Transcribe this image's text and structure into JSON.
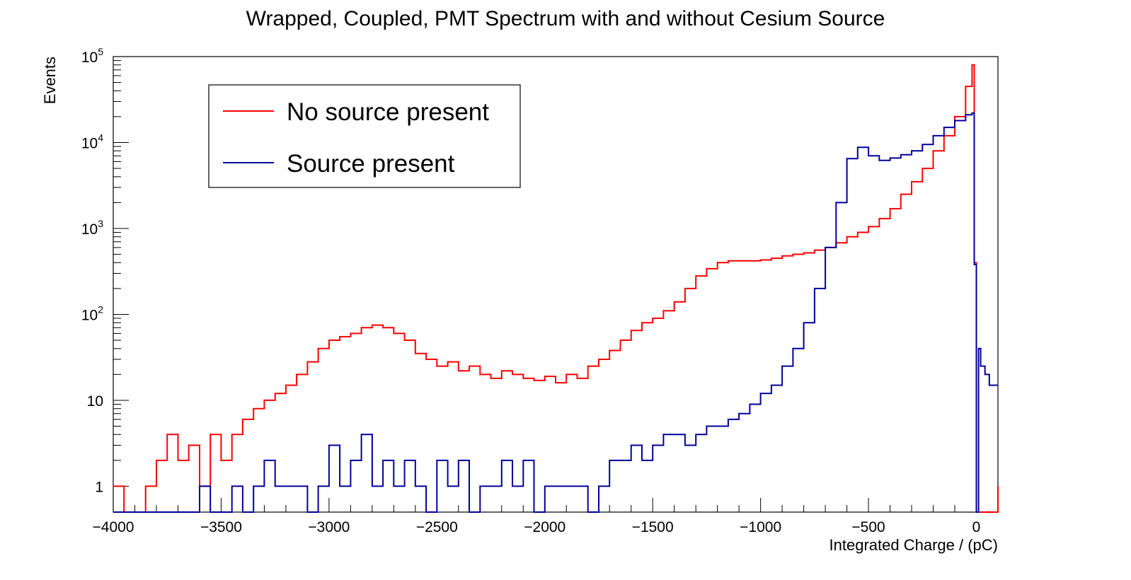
{
  "chart_data": {
    "type": "line",
    "title": "Wrapped, Coupled, PMT Spectrum with and without Cesium Source",
    "xlabel": "Integrated Charge / (pC)",
    "ylabel": "Events",
    "xlim": [
      -4000,
      100
    ],
    "ylim": [
      0.5,
      100000
    ],
    "yscale": "log",
    "grid": false,
    "legend_position": "top-left",
    "x_ticks": [
      {
        "value": -4000,
        "label": "−4000"
      },
      {
        "value": -3500,
        "label": "−3500"
      },
      {
        "value": -3000,
        "label": "−3000"
      },
      {
        "value": -2500,
        "label": "−2500"
      },
      {
        "value": -2000,
        "label": "−2000"
      },
      {
        "value": -1500,
        "label": "−1500"
      },
      {
        "value": -1000,
        "label": "−1000"
      },
      {
        "value": -500,
        "label": "−500"
      },
      {
        "value": 0,
        "label": "0"
      }
    ],
    "y_ticks": [
      {
        "value": 1,
        "base": "1",
        "exp": ""
      },
      {
        "value": 10,
        "base": "10",
        "exp": ""
      },
      {
        "value": 100,
        "base": "10",
        "exp": "2"
      },
      {
        "value": 1000,
        "base": "10",
        "exp": "3"
      },
      {
        "value": 10000,
        "base": "10",
        "exp": "4"
      },
      {
        "value": 100000,
        "base": "10",
        "exp": "5"
      }
    ],
    "series": [
      {
        "name": "No source present",
        "color": "#ff0000",
        "x": [
          -4000,
          -3950,
          -3900,
          -3850,
          -3800,
          -3750,
          -3700,
          -3650,
          -3600,
          -3550,
          -3500,
          -3450,
          -3400,
          -3350,
          -3300,
          -3250,
          -3200,
          -3150,
          -3100,
          -3050,
          -3000,
          -2950,
          -2900,
          -2850,
          -2800,
          -2750,
          -2700,
          -2650,
          -2600,
          -2550,
          -2500,
          -2450,
          -2400,
          -2350,
          -2300,
          -2250,
          -2200,
          -2150,
          -2100,
          -2050,
          -2000,
          -1950,
          -1900,
          -1850,
          -1800,
          -1750,
          -1700,
          -1650,
          -1600,
          -1550,
          -1500,
          -1450,
          -1400,
          -1350,
          -1300,
          -1250,
          -1200,
          -1150,
          -1100,
          -1050,
          -1000,
          -950,
          -900,
          -850,
          -800,
          -750,
          -700,
          -650,
          -600,
          -550,
          -500,
          -450,
          -400,
          -350,
          -300,
          -250,
          -200,
          -150,
          -100,
          -50,
          -20,
          -10,
          0,
          10,
          20,
          40,
          60,
          80,
          100
        ],
        "y": [
          1,
          0.5,
          0.5,
          1,
          2,
          4,
          2,
          3,
          1,
          4,
          2,
          4,
          6,
          8,
          10,
          12,
          15,
          20,
          28,
          40,
          50,
          55,
          60,
          70,
          75,
          70,
          60,
          50,
          35,
          30,
          25,
          28,
          22,
          25,
          20,
          18,
          22,
          20,
          18,
          17,
          19,
          16,
          20,
          18,
          25,
          30,
          38,
          50,
          65,
          80,
          90,
          110,
          140,
          200,
          280,
          340,
          400,
          420,
          420,
          420,
          430,
          450,
          480,
          500,
          520,
          560,
          600,
          680,
          800,
          900,
          1050,
          1300,
          1700,
          2500,
          3500,
          5000,
          8000,
          12000,
          20000,
          45000,
          80000,
          400,
          0.5,
          0.5,
          0.5,
          0.5,
          0.5,
          0.5,
          1
        ]
      },
      {
        "name": "Source present",
        "color": "#000099",
        "x": [
          -4000,
          -3950,
          -3900,
          -3850,
          -3800,
          -3750,
          -3700,
          -3650,
          -3600,
          -3550,
          -3500,
          -3450,
          -3400,
          -3350,
          -3300,
          -3250,
          -3200,
          -3150,
          -3100,
          -3050,
          -3000,
          -2950,
          -2900,
          -2850,
          -2800,
          -2750,
          -2700,
          -2650,
          -2600,
          -2550,
          -2500,
          -2450,
          -2400,
          -2350,
          -2300,
          -2250,
          -2200,
          -2150,
          -2100,
          -2050,
          -2000,
          -1950,
          -1900,
          -1850,
          -1800,
          -1750,
          -1700,
          -1650,
          -1600,
          -1550,
          -1500,
          -1450,
          -1400,
          -1350,
          -1300,
          -1250,
          -1200,
          -1150,
          -1100,
          -1050,
          -1000,
          -950,
          -900,
          -850,
          -800,
          -750,
          -700,
          -650,
          -600,
          -550,
          -500,
          -450,
          -400,
          -350,
          -300,
          -250,
          -200,
          -150,
          -100,
          -50,
          -20,
          -10,
          0,
          10,
          20,
          40,
          60,
          80,
          100
        ],
        "y": [
          0.5,
          0.5,
          0.5,
          0.5,
          0.5,
          0.5,
          0.5,
          0.5,
          1,
          0.5,
          0.5,
          1,
          0.5,
          1,
          2,
          1,
          1,
          1,
          0.5,
          1,
          3,
          1,
          2,
          4,
          1,
          2,
          1,
          2,
          1,
          0.5,
          2,
          1,
          2,
          0.5,
          1,
          1,
          2,
          1,
          2,
          0.5,
          1,
          1,
          1,
          1,
          0.5,
          1,
          2,
          2,
          3,
          2,
          3,
          4,
          4,
          3,
          4,
          5,
          5,
          6,
          7,
          9,
          12,
          15,
          25,
          40,
          80,
          200,
          600,
          2000,
          6500,
          8800,
          7000,
          6200,
          6600,
          7200,
          8000,
          9500,
          12000,
          15000,
          18000,
          21000,
          22000,
          380,
          0.5,
          40,
          25,
          20,
          15,
          15,
          15
        ]
      }
    ]
  }
}
